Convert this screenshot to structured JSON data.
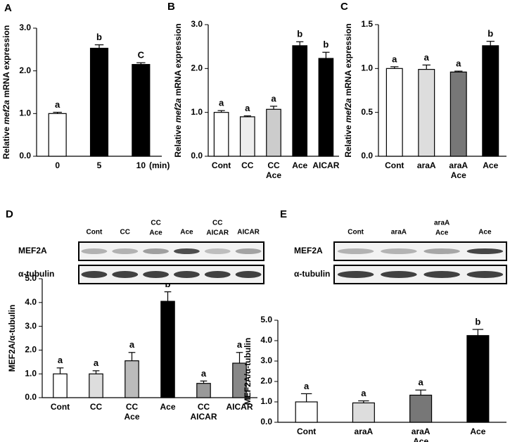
{
  "chart_data": [
    {
      "type": "bar",
      "panel": "A",
      "ylabel": [
        "Relative ",
        "mef2a",
        " mRNA expression"
      ],
      "categories": [
        [
          "0"
        ],
        [
          "5"
        ],
        [
          "10"
        ]
      ],
      "x_unit": "(min)",
      "values": [
        1.0,
        2.53,
        2.15
      ],
      "errors": [
        0.03,
        0.08,
        0.04
      ],
      "letters": [
        "a",
        "b",
        "C"
      ],
      "colors": [
        "#ffffff",
        "#000000",
        "#000000"
      ],
      "ylim": [
        0,
        3
      ],
      "yticks": [
        {
          "value": 0,
          "label": "0.0"
        },
        {
          "value": 1,
          "label": "1.0"
        },
        {
          "value": 2,
          "label": "2.0"
        },
        {
          "value": 3,
          "label": "3.0"
        }
      ]
    },
    {
      "type": "bar",
      "panel": "B",
      "ylabel": [
        "Relative ",
        "mef2a",
        " mRNA expression"
      ],
      "categories": [
        [
          "Cont"
        ],
        [
          "CC"
        ],
        [
          "CC",
          "Ace"
        ],
        [
          "Ace"
        ],
        [
          "AICAR"
        ]
      ],
      "values": [
        1.0,
        0.9,
        1.07,
        2.52,
        2.23
      ],
      "errors": [
        0.04,
        0.02,
        0.07,
        0.09,
        0.14
      ],
      "letters": [
        "a",
        "a",
        "a",
        "b",
        "b"
      ],
      "colors": [
        "#ffffff",
        "#eeeeee",
        "#cccccc",
        "#000000",
        "#000000"
      ],
      "ylim": [
        0,
        3
      ],
      "yticks": [
        {
          "value": 0,
          "label": "0.0"
        },
        {
          "value": 1,
          "label": "1.0"
        },
        {
          "value": 2,
          "label": "2.0"
        },
        {
          "value": 3,
          "label": "3.0"
        }
      ]
    },
    {
      "type": "bar",
      "panel": "C",
      "ylabel": [
        "Relative ",
        "mef2a",
        " mRNA expression"
      ],
      "categories": [
        [
          "Cont"
        ],
        [
          "araA"
        ],
        [
          "araA",
          "Ace"
        ],
        [
          "Ace"
        ]
      ],
      "values": [
        1.0,
        0.99,
        0.96,
        1.26
      ],
      "errors": [
        0.02,
        0.05,
        0.01,
        0.05
      ],
      "letters": [
        "a",
        "a",
        "a",
        "b"
      ],
      "colors": [
        "#ffffff",
        "#dddddd",
        "#777777",
        "#000000"
      ],
      "ylim": [
        0,
        1.5
      ],
      "yticks": [
        {
          "value": 0,
          "label": "0.0"
        },
        0.5,
        {
          "value": 1,
          "label": "1.0"
        },
        1.5
      ]
    },
    {
      "type": "bar",
      "panel": "D",
      "ylabel": [
        "MEF2A/α-tubulin"
      ],
      "blot": {
        "lanes": [
          [
            "Cont"
          ],
          [
            "CC"
          ],
          [
            "CC",
            "Ace"
          ],
          [
            "Ace"
          ],
          [
            "CC",
            "AICAR"
          ],
          [
            "AICAR"
          ]
        ],
        "rows": [
          "MEF2A",
          "α-tubulin"
        ]
      },
      "categories": [
        [
          "Cont"
        ],
        [
          "CC"
        ],
        [
          "CC",
          "Ace"
        ],
        [
          "Ace"
        ],
        [
          "CC",
          "AICAR"
        ],
        [
          "AICAR"
        ]
      ],
      "values": [
        1.0,
        1.0,
        1.55,
        4.05,
        0.6,
        1.45
      ],
      "errors": [
        0.25,
        0.13,
        0.35,
        0.4,
        0.1,
        0.45
      ],
      "letters": [
        "a",
        "a",
        "a",
        "b",
        "a",
        "a"
      ],
      "colors": [
        "#ffffff",
        "#dddddd",
        "#bbbbbb",
        "#000000",
        "#999999",
        "#888888"
      ],
      "ylim": [
        0,
        5
      ],
      "yticks": [
        {
          "value": 0,
          "label": "0.0"
        },
        {
          "value": 1,
          "label": "1.0"
        },
        {
          "value": 2,
          "label": "2.0"
        },
        {
          "value": 3,
          "label": "3.0"
        },
        {
          "value": 4,
          "label": "4.0"
        },
        {
          "value": 5,
          "label": "5.0"
        }
      ]
    },
    {
      "type": "bar",
      "panel": "E",
      "ylabel": [
        "MEF2A/α-tubulin"
      ],
      "blot": {
        "lanes": [
          [
            "Cont"
          ],
          [
            "araA"
          ],
          [
            "araA",
            "Ace"
          ],
          [
            "Ace"
          ]
        ],
        "rows": [
          "MEF2A",
          "α-tubulin"
        ]
      },
      "categories": [
        [
          "Cont"
        ],
        [
          "araA"
        ],
        [
          "araA",
          "Ace"
        ],
        [
          "Ace"
        ]
      ],
      "values": [
        1.0,
        0.95,
        1.33,
        4.25
      ],
      "errors": [
        0.4,
        0.1,
        0.25,
        0.3
      ],
      "letters": [
        "a",
        "a",
        "a",
        "b"
      ],
      "colors": [
        "#ffffff",
        "#dddddd",
        "#777777",
        "#000000"
      ],
      "ylim": [
        0,
        5
      ],
      "yticks": [
        {
          "value": 0,
          "label": "0.0"
        },
        {
          "value": 1,
          "label": "1.0"
        },
        {
          "value": 2,
          "label": "2.0"
        },
        {
          "value": 3,
          "label": "3.0"
        },
        {
          "value": 4,
          "label": "4.0"
        },
        {
          "value": 5,
          "label": "5.0"
        }
      ]
    }
  ]
}
